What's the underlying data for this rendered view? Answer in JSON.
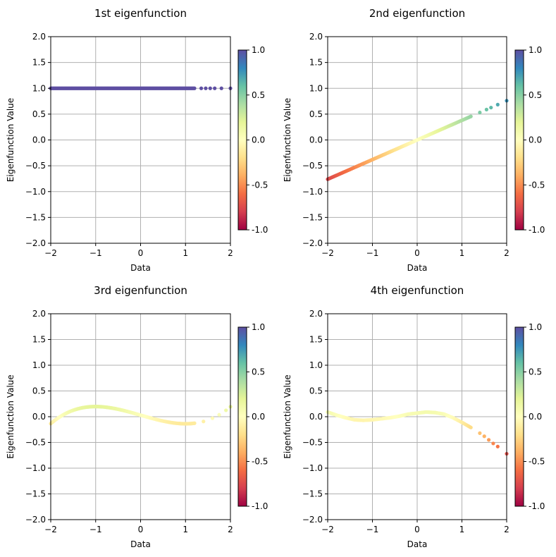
{
  "chart_data": [
    {
      "type": "scatter",
      "title": "1st eigenfunction",
      "xlabel": "Data",
      "ylabel": "Eigenfunction Value",
      "xlim": [
        -2,
        2
      ],
      "ylim": [
        -2,
        2
      ],
      "xticks": [
        -2,
        -1,
        0,
        1,
        2
      ],
      "xtick_labels": [
        "−2",
        "−1",
        "0",
        "1",
        "2"
      ],
      "yticks": [
        2.0,
        1.5,
        1.0,
        0.5,
        0.0,
        -0.5,
        -1.0,
        -1.5,
        -2.0
      ],
      "ytick_labels": [
        "2.0",
        "1.5",
        "1.0",
        "0.5",
        "0.0",
        "−0.5",
        "−1.0",
        "−1.5",
        "−2.0"
      ],
      "grid": true,
      "curve": {
        "kind": "constant",
        "value": 1.0
      },
      "x_sample": [
        -2.0,
        -1.8,
        -1.6,
        -1.4,
        -1.2,
        -1.0,
        -0.8,
        -0.6,
        -0.4,
        -0.2,
        0.0,
        0.2,
        0.4,
        0.6,
        0.8,
        1.0,
        1.2,
        1.35,
        1.45,
        1.55,
        1.65,
        1.8,
        2.0
      ],
      "colorbar": {
        "cmap": "Spectral",
        "vmin": -1.0,
        "vmax": 1.0,
        "ticks": [
          "1.0",
          "0.5",
          "0.0",
          "-0.5",
          "-1.0"
        ]
      }
    },
    {
      "type": "scatter",
      "title": "2nd eigenfunction",
      "xlabel": "Data",
      "ylabel": "Eigenfunction Value",
      "xlim": [
        -2,
        2
      ],
      "ylim": [
        -2,
        2
      ],
      "xticks": [
        -2,
        -1,
        0,
        1,
        2
      ],
      "xtick_labels": [
        "−2",
        "−1",
        "0",
        "1",
        "2"
      ],
      "yticks": [
        2.0,
        1.5,
        1.0,
        0.5,
        0.0,
        -0.5,
        -1.0,
        -1.5,
        -2.0
      ],
      "ytick_labels": [
        "2.0",
        "1.5",
        "1.0",
        "0.5",
        "0.0",
        "−0.5",
        "−1.0",
        "−1.5",
        "−2.0"
      ],
      "grid": true,
      "curve": {
        "kind": "linear",
        "slope": 0.38,
        "intercept": 0.0
      },
      "x_sample": [
        -2.0,
        -1.8,
        -1.6,
        -1.4,
        -1.2,
        -1.0,
        -0.8,
        -0.6,
        -0.4,
        -0.2,
        0.0,
        0.2,
        0.4,
        0.6,
        0.8,
        1.0,
        1.2,
        1.4,
        1.55,
        1.65,
        1.8,
        2.0
      ],
      "colorbar": {
        "cmap": "Spectral",
        "vmin": -1.0,
        "vmax": 1.0,
        "ticks": [
          "1.0",
          "0.5",
          "0.0",
          "-0.5",
          "-1.0"
        ]
      }
    },
    {
      "type": "scatter",
      "title": "3rd eigenfunction",
      "xlabel": "Data",
      "ylabel": "Eigenfunction Value",
      "xlim": [
        -2,
        2
      ],
      "ylim": [
        -2,
        2
      ],
      "xticks": [
        -2,
        -1,
        0,
        1,
        2
      ],
      "xtick_labels": [
        "−2",
        "−1",
        "0",
        "1",
        "2"
      ],
      "yticks": [
        2.0,
        1.5,
        1.0,
        0.5,
        0.0,
        -0.5,
        -1.0,
        -1.5,
        -2.0
      ],
      "ytick_labels": [
        "2.0",
        "1.5",
        "1.0",
        "0.5",
        "0.0",
        "−0.5",
        "−1.0",
        "−1.5",
        "−2.0"
      ],
      "grid": true,
      "curve": {
        "kind": "cubic",
        "a": 0.083,
        "b": 0.0,
        "c": -0.25,
        "d": 0.03
      },
      "x_sample": [
        -2.0,
        -1.8,
        -1.6,
        -1.4,
        -1.2,
        -1.0,
        -0.8,
        -0.6,
        -0.4,
        -0.2,
        0.0,
        0.2,
        0.4,
        0.6,
        0.8,
        1.0,
        1.2,
        1.4,
        1.6,
        1.75,
        1.9,
        2.0
      ],
      "colorbar": {
        "cmap": "Spectral",
        "vmin": -1.0,
        "vmax": 1.0,
        "ticks": [
          "1.0",
          "0.5",
          "0.0",
          "-0.5",
          "-1.0"
        ]
      }
    },
    {
      "type": "scatter",
      "title": "4th eigenfunction",
      "xlabel": "Data",
      "ylabel": "Eigenfunction Value",
      "xlim": [
        -2,
        2
      ],
      "ylim": [
        -2,
        2
      ],
      "xticks": [
        -2,
        -1,
        0,
        1,
        2
      ],
      "xtick_labels": [
        "−2",
        "−1",
        "0",
        "1",
        "2"
      ],
      "yticks": [
        2.0,
        1.5,
        1.0,
        0.5,
        0.0,
        -0.5,
        -1.0,
        -1.5,
        -2.0
      ],
      "ytick_labels": [
        "2.0",
        "1.5",
        "1.0",
        "0.5",
        "0.0",
        "−0.5",
        "−1.0",
        "−1.5",
        "−2.0"
      ],
      "grid": true,
      "curve": {
        "kind": "points"
      },
      "x_sample": [
        -2.0,
        -1.8,
        -1.6,
        -1.4,
        -1.2,
        -1.0,
        -0.8,
        -0.6,
        -0.4,
        -0.2,
        0.0,
        0.2,
        0.4,
        0.6,
        0.8,
        1.0,
        1.2,
        1.4,
        1.5,
        1.6,
        1.7,
        1.8,
        2.0
      ],
      "y_sample": [
        0.09,
        0.03,
        -0.02,
        -0.06,
        -0.07,
        -0.06,
        -0.04,
        -0.02,
        0.01,
        0.05,
        0.07,
        0.09,
        0.08,
        0.05,
        -0.02,
        -0.11,
        -0.21,
        -0.32,
        -0.38,
        -0.45,
        -0.52,
        -0.58,
        -0.72
      ],
      "colorbar": {
        "cmap": "Spectral",
        "vmin": -1.0,
        "vmax": 1.0,
        "ticks": [
          "1.0",
          "0.5",
          "0.0",
          "-0.5",
          "-1.0"
        ]
      }
    }
  ],
  "colormap": {
    "name": "Spectral",
    "stops": [
      "#9e0142",
      "#d53e4f",
      "#f46d43",
      "#fdae61",
      "#fee08b",
      "#ffffbf",
      "#e6f598",
      "#abdda4",
      "#66c2a5",
      "#3288bd",
      "#5e4fa2"
    ]
  }
}
